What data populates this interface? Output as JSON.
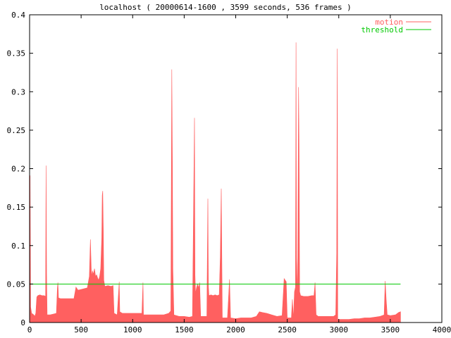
{
  "chart_data": {
    "type": "area",
    "title": "localhost ( 20000614-1600 , 3599 seconds, 536 frames )",
    "xlim": [
      0,
      4000
    ],
    "ylim": [
      0,
      0.4
    ],
    "x_ticks": [
      "0",
      "500",
      "1000",
      "1500",
      "2000",
      "2500",
      "3000",
      "3500",
      "4000"
    ],
    "x_tick_values": [
      0,
      500,
      1000,
      1500,
      2000,
      2500,
      3000,
      3500,
      4000
    ],
    "y_ticks": [
      "0",
      "0.05",
      "0.1",
      "0.15",
      "0.2",
      "0.25",
      "0.3",
      "0.35",
      "0.4"
    ],
    "y_tick_values": [
      0,
      0.05,
      0.1,
      0.15,
      0.2,
      0.25,
      0.3,
      0.35,
      0.4
    ],
    "grid": false,
    "legend_position": "top-right",
    "series": [
      {
        "name": "motion",
        "color": "#ff6060",
        "style": "filled",
        "points": [
          [
            0,
            0.065
          ],
          [
            5,
            0.191
          ],
          [
            10,
            0.02
          ],
          [
            20,
            0.012
          ],
          [
            40,
            0.01
          ],
          [
            50,
            0.008
          ],
          [
            60,
            0.012
          ],
          [
            70,
            0.033
          ],
          [
            80,
            0.035
          ],
          [
            100,
            0.036
          ],
          [
            120,
            0.035
          ],
          [
            140,
            0.035
          ],
          [
            155,
            0.034
          ],
          [
            160,
            0.204
          ],
          [
            165,
            0.063
          ],
          [
            170,
            0.01
          ],
          [
            200,
            0.01
          ],
          [
            230,
            0.011
          ],
          [
            260,
            0.012
          ],
          [
            270,
            0.046
          ],
          [
            275,
            0.052
          ],
          [
            280,
            0.032
          ],
          [
            300,
            0.031
          ],
          [
            330,
            0.031
          ],
          [
            360,
            0.031
          ],
          [
            400,
            0.031
          ],
          [
            430,
            0.031
          ],
          [
            450,
            0.046
          ],
          [
            470,
            0.042
          ],
          [
            500,
            0.043
          ],
          [
            530,
            0.044
          ],
          [
            560,
            0.045
          ],
          [
            580,
            0.06
          ],
          [
            590,
            0.108
          ],
          [
            600,
            0.06
          ],
          [
            610,
            0.067
          ],
          [
            620,
            0.063
          ],
          [
            630,
            0.07
          ],
          [
            640,
            0.06
          ],
          [
            650,
            0.062
          ],
          [
            660,
            0.058
          ],
          [
            670,
            0.055
          ],
          [
            680,
            0.06
          ],
          [
            690,
            0.07
          ],
          [
            700,
            0.11
          ],
          [
            705,
            0.165
          ],
          [
            710,
            0.171
          ],
          [
            715,
            0.12
          ],
          [
            720,
            0.055
          ],
          [
            730,
            0.047
          ],
          [
            760,
            0.048
          ],
          [
            790,
            0.047
          ],
          [
            810,
            0.048
          ],
          [
            820,
            0.012
          ],
          [
            850,
            0.01
          ],
          [
            870,
            0.053
          ],
          [
            875,
            0.014
          ],
          [
            900,
            0.012
          ],
          [
            950,
            0.012
          ],
          [
            1000,
            0.012
          ],
          [
            1050,
            0.012
          ],
          [
            1090,
            0.012
          ],
          [
            1100,
            0.052
          ],
          [
            1105,
            0.01
          ],
          [
            1150,
            0.01
          ],
          [
            1200,
            0.01
          ],
          [
            1250,
            0.01
          ],
          [
            1300,
            0.01
          ],
          [
            1350,
            0.012
          ],
          [
            1370,
            0.015
          ],
          [
            1380,
            0.329
          ],
          [
            1385,
            0.211
          ],
          [
            1390,
            0.07
          ],
          [
            1400,
            0.01
          ],
          [
            1450,
            0.008
          ],
          [
            1500,
            0.008
          ],
          [
            1550,
            0.007
          ],
          [
            1580,
            0.008
          ],
          [
            1600,
            0.266
          ],
          [
            1605,
            0.062
          ],
          [
            1610,
            0.038
          ],
          [
            1620,
            0.045
          ],
          [
            1630,
            0.05
          ],
          [
            1640,
            0.045
          ],
          [
            1650,
            0.052
          ],
          [
            1660,
            0.008
          ],
          [
            1700,
            0.008
          ],
          [
            1720,
            0.008
          ],
          [
            1730,
            0.161
          ],
          [
            1735,
            0.048
          ],
          [
            1740,
            0.035
          ],
          [
            1760,
            0.036
          ],
          [
            1780,
            0.035
          ],
          [
            1800,
            0.036
          ],
          [
            1820,
            0.035
          ],
          [
            1840,
            0.036
          ],
          [
            1850,
            0.085
          ],
          [
            1860,
            0.174
          ],
          [
            1870,
            0.006
          ],
          [
            1900,
            0.006
          ],
          [
            1920,
            0.006
          ],
          [
            1940,
            0.056
          ],
          [
            1950,
            0.006
          ],
          [
            2000,
            0.005
          ],
          [
            2050,
            0.006
          ],
          [
            2100,
            0.006
          ],
          [
            2150,
            0.006
          ],
          [
            2200,
            0.008
          ],
          [
            2230,
            0.014
          ],
          [
            2260,
            0.013
          ],
          [
            2300,
            0.012
          ],
          [
            2350,
            0.01
          ],
          [
            2400,
            0.008
          ],
          [
            2450,
            0.009
          ],
          [
            2470,
            0.057
          ],
          [
            2490,
            0.053
          ],
          [
            2500,
            0.006
          ],
          [
            2540,
            0.006
          ],
          [
            2550,
            0.03
          ],
          [
            2560,
            0.005
          ],
          [
            2570,
            0.04
          ],
          [
            2580,
            0.046
          ],
          [
            2585,
            0.364
          ],
          [
            2590,
            0.085
          ],
          [
            2600,
            0.03
          ],
          [
            2610,
            0.306
          ],
          [
            2615,
            0.228
          ],
          [
            2620,
            0.04
          ],
          [
            2630,
            0.035
          ],
          [
            2660,
            0.034
          ],
          [
            2700,
            0.034
          ],
          [
            2740,
            0.035
          ],
          [
            2760,
            0.035
          ],
          [
            2770,
            0.052
          ],
          [
            2780,
            0.01
          ],
          [
            2800,
            0.008
          ],
          [
            2850,
            0.008
          ],
          [
            2900,
            0.008
          ],
          [
            2950,
            0.008
          ],
          [
            2970,
            0.01
          ],
          [
            2980,
            0.09
          ],
          [
            2985,
            0.356
          ],
          [
            2990,
            0.004
          ],
          [
            3050,
            0.004
          ],
          [
            3100,
            0.004
          ],
          [
            3150,
            0.005
          ],
          [
            3200,
            0.005
          ],
          [
            3250,
            0.006
          ],
          [
            3300,
            0.006
          ],
          [
            3350,
            0.007
          ],
          [
            3400,
            0.008
          ],
          [
            3440,
            0.01
          ],
          [
            3450,
            0.054
          ],
          [
            3460,
            0.03
          ],
          [
            3470,
            0.01
          ],
          [
            3500,
            0.009
          ],
          [
            3550,
            0.01
          ],
          [
            3580,
            0.013
          ],
          [
            3599,
            0.014
          ]
        ]
      },
      {
        "name": "threshold",
        "color": "#00c800",
        "style": "line",
        "points": [
          [
            0,
            0.05
          ],
          [
            3599,
            0.05
          ]
        ]
      }
    ]
  }
}
